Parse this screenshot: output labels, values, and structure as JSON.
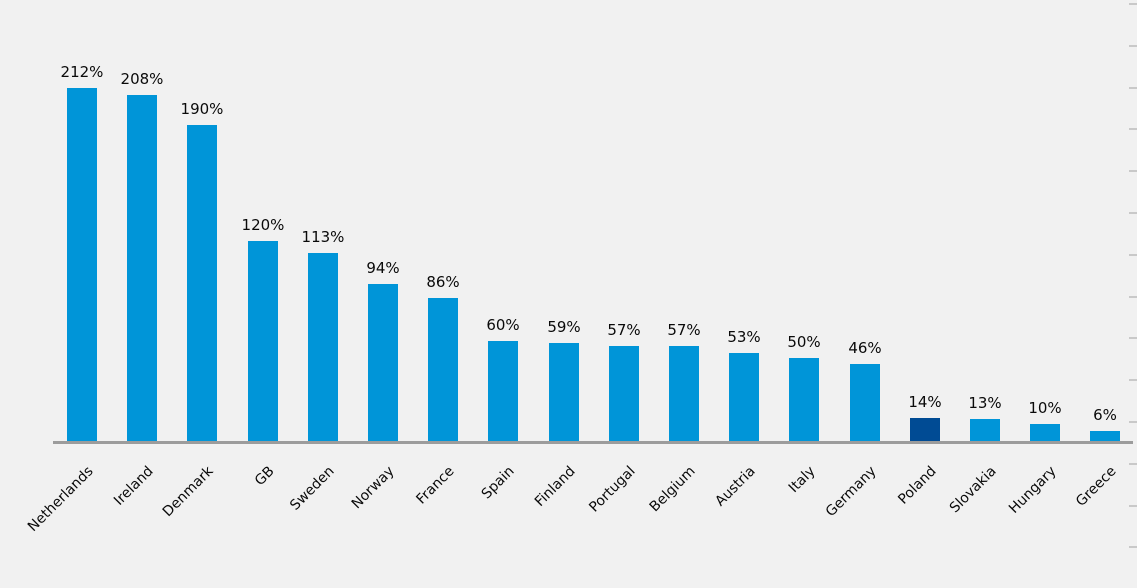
{
  "chart_data": {
    "type": "bar",
    "title": "",
    "xlabel": "",
    "ylabel": "",
    "categories": [
      "Netherlands",
      "Ireland",
      "Denmark",
      "GB",
      "Sweden",
      "Norway",
      "France",
      "Spain",
      "Finland",
      "Portugal",
      "Belgium",
      "Austria",
      "Italy",
      "Germany",
      "Poland",
      "Slovakia",
      "Hungary",
      "Greece"
    ],
    "values": [
      212,
      208,
      190,
      120,
      113,
      94,
      86,
      60,
      59,
      57,
      57,
      53,
      50,
      46,
      14,
      13,
      10,
      6
    ],
    "value_labels": [
      "212%",
      "208%",
      "190%",
      "120%",
      "113%",
      "94%",
      "86%",
      "60%",
      "59%",
      "57%",
      "57%",
      "53%",
      "50%",
      "46%",
      "14%",
      "13%",
      "10%",
      "6%"
    ],
    "highlight_category": "Poland",
    "ylim": [
      0,
      265
    ],
    "grid": false,
    "legend": false,
    "sorted": "descending",
    "colors": {
      "bar": "#0095d8",
      "highlight_bar": "#004b94",
      "background": "#f1f1f1",
      "axis_line": "#9c9c9c",
      "edge_tick": "#c9c9c9",
      "label_text": "#0a0a0a"
    }
  }
}
